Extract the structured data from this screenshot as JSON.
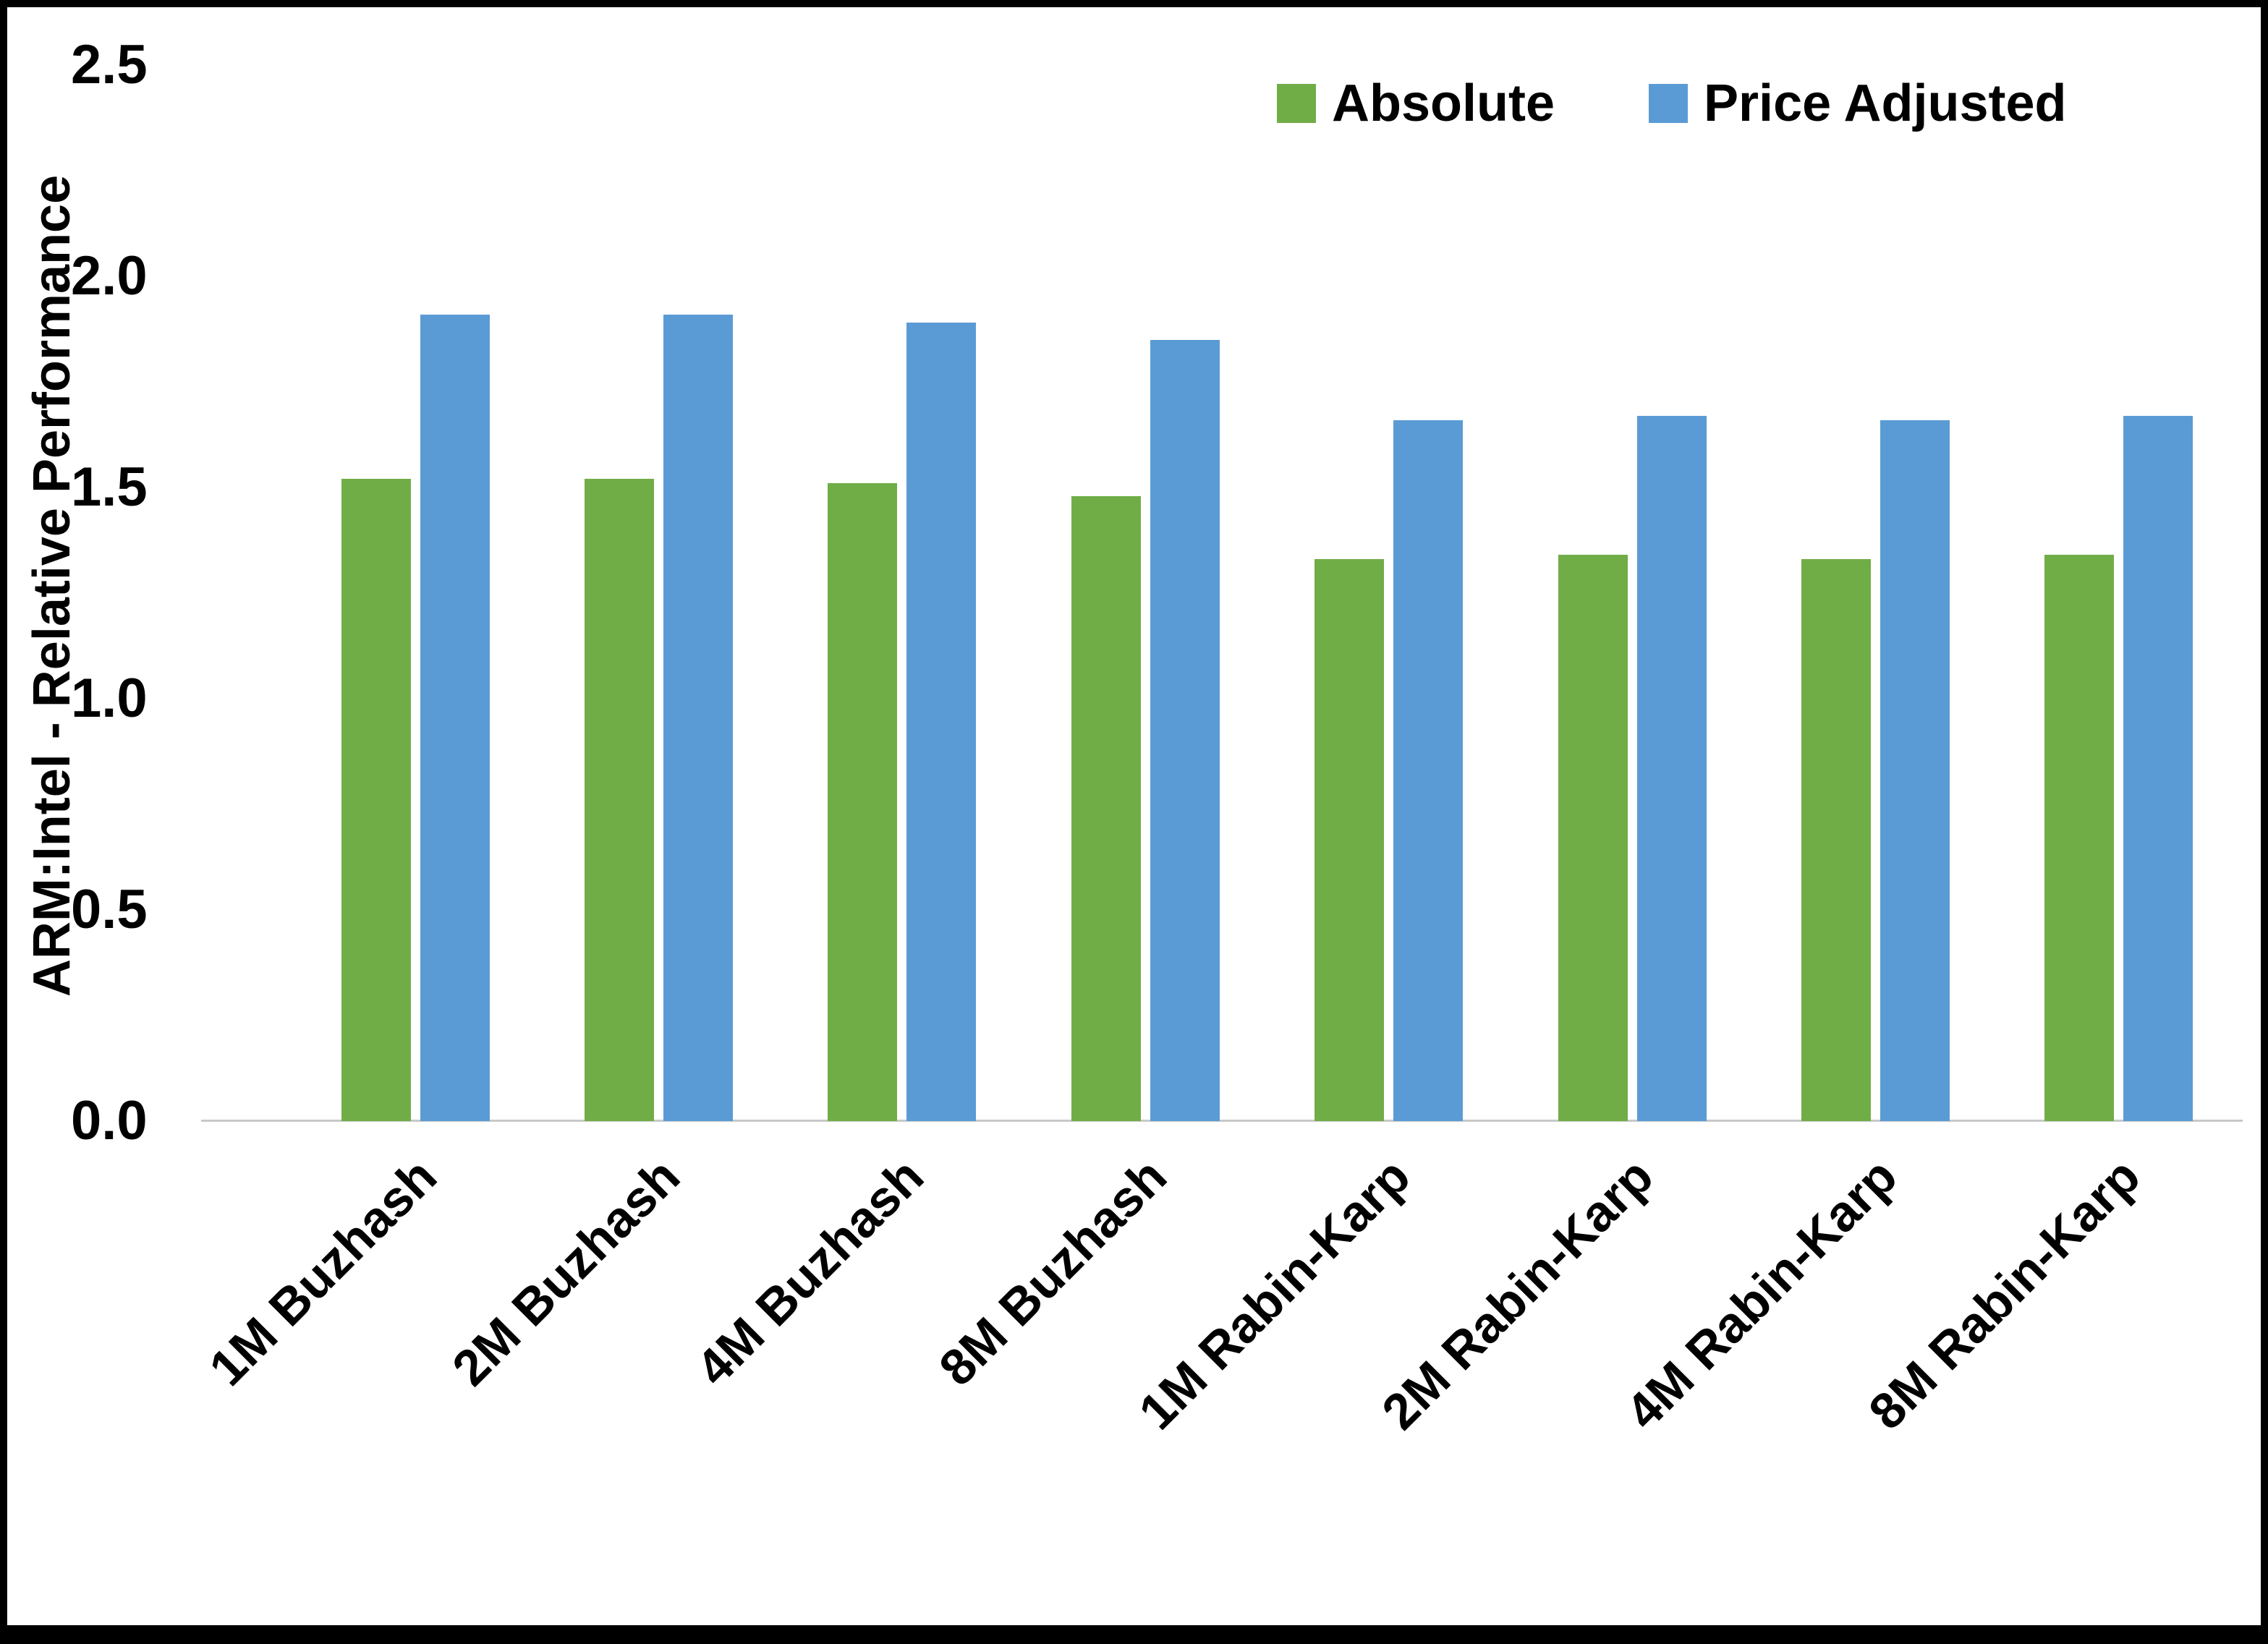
{
  "chart_data": {
    "type": "bar",
    "ylabel": "ARM:Intel - Relative Performance",
    "ylim": [
      0,
      2.5
    ],
    "yticks": [
      0,
      0.5,
      1,
      1.5,
      2,
      2.5
    ],
    "ytick_labels": [
      "0.0",
      "0.5",
      "1.0",
      "1.5",
      "2.0",
      "2.5"
    ],
    "categories": [
      "1M Buzhash",
      "2M Buzhash",
      "4M Buzhash",
      "8M Buzhash",
      "1M Rabin-Karp",
      "2M Rabin-Karp",
      "4M Rabin-Karp",
      "8M Rabin-Karp"
    ],
    "series": [
      {
        "name": "Absolute",
        "color": "#70AD47",
        "values": [
          1.52,
          1.52,
          1.51,
          1.48,
          1.33,
          1.34,
          1.33,
          1.34
        ]
      },
      {
        "name": "Price Adjusted",
        "color": "#5B9BD5",
        "values": [
          1.91,
          1.91,
          1.89,
          1.85,
          1.66,
          1.67,
          1.66,
          1.67
        ]
      }
    ],
    "legend_position": "top-right",
    "grid": false,
    "axis_line_color": "#c8c8c8",
    "background_color": "#ffffff",
    "border_color": "#000000"
  }
}
